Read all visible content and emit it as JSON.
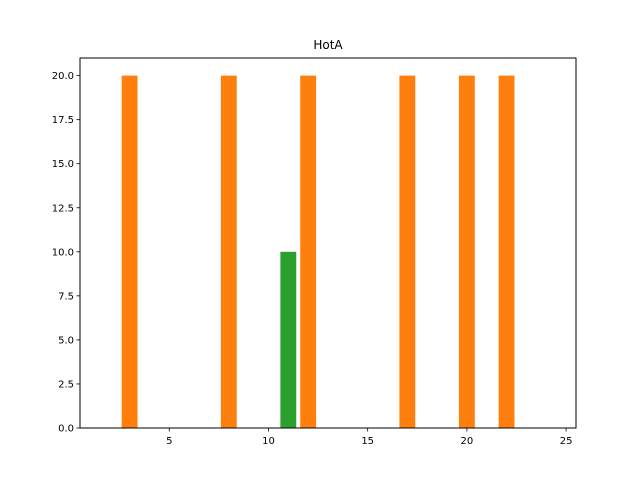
{
  "chart_data": {
    "type": "bar",
    "title": "HotA",
    "xlabel": "",
    "ylabel": "",
    "xlim": [
      0.5,
      25.5
    ],
    "ylim": [
      0,
      21
    ],
    "xticks": [
      5,
      10,
      15,
      20,
      25
    ],
    "xtick_labels": [
      "5",
      "10",
      "15",
      "20",
      "25"
    ],
    "yticks": [
      0,
      2.5,
      5,
      7.5,
      10,
      12.5,
      15,
      17.5,
      20
    ],
    "ytick_labels": [
      "0.0",
      "2.5",
      "5.0",
      "7.5",
      "10.0",
      "12.5",
      "15.0",
      "17.5",
      "20.0"
    ],
    "grid": false,
    "series": [
      {
        "color": "#ff7f0e",
        "x": [
          3,
          8,
          12,
          17,
          20,
          22
        ],
        "values": [
          20,
          20,
          20,
          20,
          20,
          20
        ]
      },
      {
        "color": "#2ca02c",
        "x": [
          11
        ],
        "values": [
          10
        ]
      }
    ],
    "bar_width": 0.8
  }
}
